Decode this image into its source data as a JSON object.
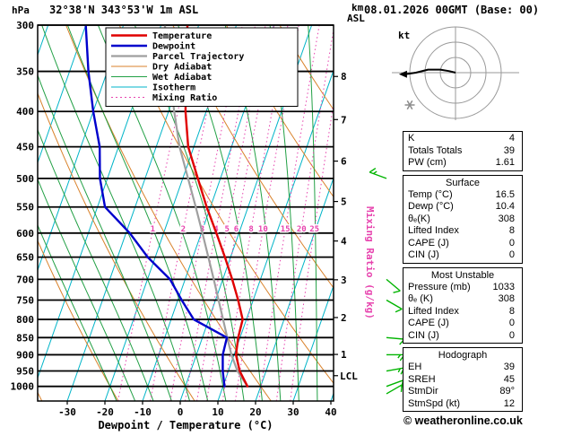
{
  "header": {
    "pressure_unit": "hPa",
    "station_title": "32°38'N 343°53'W 1m ASL",
    "altitude_unit_line1": "km",
    "altitude_unit_line2": "ASL",
    "datetime_title": "08.01.2026 00GMT (Base: 00)"
  },
  "footer": {
    "copyright": "© weatheronline.co.uk"
  },
  "hodograph": {
    "unit_label": "kt",
    "rings_kt": [
      10,
      20,
      30
    ],
    "trace_kt": [
      [
        0,
        0
      ],
      [
        -4,
        1
      ],
      [
        -10,
        2
      ],
      [
        -18,
        2
      ],
      [
        -26,
        0
      ],
      [
        -33,
        -1
      ]
    ],
    "storm_motion": {
      "dir_deg": 89,
      "speed_kt": 12
    }
  },
  "stats": {
    "summary": [
      {
        "label": "K",
        "value": "4"
      },
      {
        "label": "Totals Totals",
        "value": "39"
      },
      {
        "label": "PW (cm)",
        "value": "1.61"
      }
    ],
    "sections": [
      {
        "title": "Surface",
        "rows": [
          [
            "Temp (°C)",
            "16.5"
          ],
          [
            "Dewp (°C)",
            "10.4"
          ],
          [
            "θₑ(K)",
            "308"
          ],
          [
            "Lifted Index",
            "8"
          ],
          [
            "CAPE (J)",
            "0"
          ],
          [
            "CIN (J)",
            "0"
          ]
        ]
      },
      {
        "title": "Most Unstable",
        "rows": [
          [
            "Pressure (mb)",
            "1033"
          ],
          [
            "θₑ (K)",
            "308"
          ],
          [
            "Lifted Index",
            "8"
          ],
          [
            "CAPE (J)",
            "0"
          ],
          [
            "CIN (J)",
            "0"
          ]
        ]
      },
      {
        "title": "Hodograph",
        "rows": [
          [
            "EH",
            "39"
          ],
          [
            "SREH",
            "45"
          ],
          [
            "StmDir",
            "89°"
          ],
          [
            "StmSpd (kt)",
            "12"
          ]
        ]
      }
    ]
  },
  "chart_data": {
    "type": "skewt-logp-sounding",
    "xlabel": "Dewpoint / Temperature (°C)",
    "right_axis_label": "Mixing Ratio (g/kg)",
    "pressure_range": [
      300,
      1050
    ],
    "pressure_ticks": [
      300,
      350,
      400,
      450,
      500,
      550,
      600,
      650,
      700,
      750,
      800,
      850,
      900,
      950,
      1000
    ],
    "temp_ticks": [
      -30,
      -20,
      -10,
      0,
      10,
      20,
      30,
      40
    ],
    "km_ticks": [
      1,
      2,
      3,
      4,
      5,
      6,
      7,
      8
    ],
    "km_tick_pressures": [
      899,
      795,
      701,
      616,
      540,
      472,
      411,
      356
    ],
    "lcl_label": "LCL",
    "lcl_pressure": 965,
    "mixing_ratio_labels": [
      1,
      2,
      3,
      4,
      5,
      6,
      8,
      10,
      15,
      20,
      25
    ],
    "colors": {
      "temperature": "#e00000",
      "dewpoint": "#0000cc",
      "parcel": "#9f9f9f",
      "dry_adiabat": "#d9822b",
      "wet_adiabat": "#22a045",
      "isotherm": "#00b4c8",
      "mixing_ratio": "#e743ae",
      "isobar": "#000000",
      "wind_barb": "#00b400"
    },
    "legend": [
      {
        "label": "Temperature",
        "color": "#e00000",
        "width": 2.4
      },
      {
        "label": "Dewpoint",
        "color": "#0000cc",
        "width": 2.4
      },
      {
        "label": "Parcel Trajectory",
        "color": "#9f9f9f",
        "width": 2.2
      },
      {
        "label": "Dry Adiabat",
        "color": "#d9822b",
        "width": 1
      },
      {
        "label": "Wet Adiabat",
        "color": "#22a045",
        "width": 1
      },
      {
        "label": "Isotherm",
        "color": "#00b4c8",
        "width": 1
      },
      {
        "label": "Mixing Ratio",
        "color": "#e743ae",
        "width": 1,
        "dash": true
      }
    ],
    "temperature_profile": {
      "color": "#e00000",
      "points": [
        [
          1000,
          16.5
        ],
        [
          950,
          13
        ],
        [
          900,
          10.5
        ],
        [
          850,
          9.5
        ],
        [
          800,
          9
        ],
        [
          750,
          6
        ],
        [
          700,
          2.5
        ],
        [
          650,
          -1.5
        ],
        [
          600,
          -6
        ],
        [
          550,
          -11
        ],
        [
          500,
          -16
        ],
        [
          450,
          -21.5
        ],
        [
          400,
          -25.5
        ],
        [
          350,
          -29
        ],
        [
          300,
          -33
        ]
      ]
    },
    "dewpoint_profile": {
      "color": "#0000cc",
      "points": [
        [
          1000,
          10.4
        ],
        [
          950,
          8.5
        ],
        [
          900,
          7
        ],
        [
          850,
          6.5
        ],
        [
          800,
          -4
        ],
        [
          750,
          -9
        ],
        [
          700,
          -14
        ],
        [
          650,
          -22
        ],
        [
          600,
          -29
        ],
        [
          550,
          -38
        ],
        [
          500,
          -42
        ],
        [
          450,
          -45
        ],
        [
          400,
          -50
        ],
        [
          350,
          -55
        ],
        [
          300,
          -60
        ]
      ]
    },
    "parcel_profile": {
      "color": "#9f9f9f",
      "points": [
        [
          1000,
          16.5
        ],
        [
          950,
          12.4
        ],
        [
          900,
          9.3
        ],
        [
          850,
          6.6
        ],
        [
          800,
          3.8
        ],
        [
          750,
          0.8
        ],
        [
          700,
          -2.4
        ],
        [
          650,
          -5.9
        ],
        [
          600,
          -9.7
        ],
        [
          550,
          -13.9
        ],
        [
          500,
          -18.6
        ],
        [
          450,
          -23.8
        ],
        [
          400,
          -28.5
        ],
        [
          350,
          -33.5
        ],
        [
          300,
          -39
        ]
      ]
    },
    "wind_barbs": [
      {
        "pressure": 1025,
        "speed_kt": 10,
        "dir_deg": 60
      },
      {
        "pressure": 1000,
        "speed_kt": 10,
        "dir_deg": 70
      },
      {
        "pressure": 950,
        "speed_kt": 15,
        "dir_deg": 80
      },
      {
        "pressure": 900,
        "speed_kt": 15,
        "dir_deg": 90
      },
      {
        "pressure": 850,
        "speed_kt": 10,
        "dir_deg": 95
      },
      {
        "pressure": 750,
        "speed_kt": 10,
        "dir_deg": 120
      },
      {
        "pressure": 700,
        "speed_kt": 10,
        "dir_deg": 130
      },
      {
        "pressure": 500,
        "speed_kt": 15,
        "dir_deg": 290
      }
    ]
  }
}
